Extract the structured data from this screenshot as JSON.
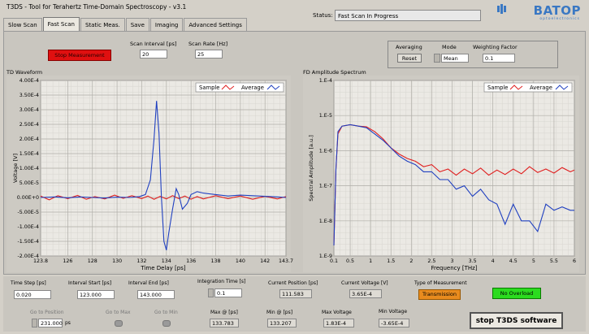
{
  "app": {
    "title": "T3DS  -  Tool for Terahertz Time-Domain Spectroscopy  -  v3.1"
  },
  "logo": {
    "name": "BATOP",
    "sub": "optoelectronics"
  },
  "status": {
    "label": "Status:",
    "value": "Fast Scan In Progress"
  },
  "tabs": [
    {
      "label": "Slow Scan"
    },
    {
      "label": "Fast Scan"
    },
    {
      "label": "Static Meas."
    },
    {
      "label": "Save"
    },
    {
      "label": "Imaging"
    },
    {
      "label": "Advanced Settings"
    }
  ],
  "controls": {
    "stop_measurement": "Stop Measurement",
    "scan_interval_label": "Scan Interval [ps]",
    "scan_interval_value": "20",
    "scan_rate_label": "Scan Rate [Hz]",
    "scan_rate_value": "25",
    "averaging_label": "Averaging",
    "reset": "Reset",
    "mode_label": "Mode",
    "mode_value": "Mean",
    "weighting_label": "Weighting Factor",
    "weighting_value": "0.1"
  },
  "chart_data": [
    {
      "type": "line",
      "title": "TD Waveform",
      "xlabel": "Time Delay [ps]",
      "ylabel": "Voltage [V]",
      "xlim": [
        123.8,
        143.7
      ],
      "ylim": [
        -0.0002,
        0.0004
      ],
      "x_ticks": [
        "123.8",
        "126",
        "128",
        "130",
        "132",
        "134",
        "136",
        "138",
        "140",
        "142",
        "143.7"
      ],
      "y_ticks": [
        "4.00E-4",
        "3.50E-4",
        "3.00E-4",
        "2.50E-4",
        "2.00E-4",
        "1.50E-4",
        "1.00E-4",
        "5.00E-5",
        "0.00E+0",
        "-5.00E-5",
        "-1.00E-4",
        "-1.50E-4",
        "-2.00E-4"
      ],
      "grid": true,
      "legend": "top-right",
      "series": [
        {
          "name": "Sample",
          "color": "#e02020",
          "x": [
            123.8,
            124.5,
            125.2,
            126,
            126.8,
            127.5,
            128.2,
            129,
            129.8,
            130.5,
            131.2,
            132,
            132.5,
            133,
            133.5,
            134,
            134.5,
            135,
            135.5,
            136,
            136.5,
            137,
            138,
            139,
            140,
            141,
            142,
            143,
            143.7
          ],
          "y": [
            5e-06,
            -8e-06,
            6e-06,
            -4e-06,
            7e-06,
            -6e-06,
            3e-06,
            -5e-06,
            8e-06,
            -3e-06,
            6e-06,
            -4e-06,
            5e-06,
            -6e-06,
            4e-06,
            -5e-06,
            6e-06,
            -4e-06,
            5e-06,
            -6e-06,
            3e-06,
            -5e-06,
            6e-06,
            -4e-06,
            5e-06,
            -6e-06,
            4e-06,
            -5e-06,
            3e-06
          ]
        },
        {
          "name": "Average",
          "color": "#2040c0",
          "x": [
            123.8,
            125,
            126,
            127,
            128,
            129,
            130,
            131,
            131.8,
            132.3,
            132.7,
            133,
            133.2,
            133.4,
            133.6,
            133.8,
            134,
            134.2,
            134.5,
            134.8,
            135,
            135.3,
            135.7,
            136,
            136.5,
            137,
            138,
            139,
            140,
            141,
            142,
            143,
            143.7
          ],
          "y": [
            0.0,
            2e-06,
            -1e-06,
            2e-06,
            0.0,
            -2e-06,
            1e-06,
            0.0,
            3e-06,
            1e-05,
            6e-05,
            0.0002,
            0.00033,
            0.00022,
            0.0,
            -0.00015,
            -0.00018,
            -0.00012,
            -4e-05,
            3e-05,
            1e-05,
            -4e-05,
            -2e-05,
            1e-05,
            2e-05,
            1.5e-05,
            1e-05,
            5e-06,
            8e-06,
            6e-06,
            4e-06,
            2e-06,
            0.0
          ]
        }
      ]
    },
    {
      "type": "line",
      "title": "FD Amplitude Spectrum",
      "xlabel": "Frequency [THz]",
      "ylabel": "Spectral Amplitude [a.u.]",
      "xlim": [
        0.1,
        6
      ],
      "ylim": [
        1e-09,
        0.0001
      ],
      "yscale": "log",
      "x_ticks": [
        "0.1",
        "0.5",
        "1",
        "1.5",
        "2",
        "2.5",
        "3",
        "3.5",
        "4",
        "4.5",
        "5",
        "5.5",
        "6"
      ],
      "y_ticks": [
        "1.E-4",
        "1.E-5",
        "1.E-6",
        "1.E-7",
        "1.E-8",
        "1.E-9"
      ],
      "grid": true,
      "legend": "top-right",
      "series": [
        {
          "name": "Sample",
          "color": "#e02020",
          "x": [
            0.1,
            0.15,
            0.2,
            0.3,
            0.5,
            0.7,
            0.9,
            1.1,
            1.3,
            1.5,
            1.7,
            1.9,
            2.1,
            2.3,
            2.5,
            2.7,
            2.9,
            3.1,
            3.3,
            3.5,
            3.7,
            3.9,
            4.1,
            4.3,
            4.5,
            4.7,
            4.9,
            5.1,
            5.3,
            5.5,
            5.7,
            5.9,
            6
          ],
          "y": [
            2e-09,
            3e-07,
            3e-06,
            5e-06,
            5.5e-06,
            5e-06,
            4.8e-06,
            3.5e-06,
            2.2e-06,
            1.2e-06,
            8e-07,
            6e-07,
            5e-07,
            3.5e-07,
            4e-07,
            2.5e-07,
            3e-07,
            2e-07,
            3e-07,
            2.2e-07,
            3.2e-07,
            2e-07,
            2.8e-07,
            2.1e-07,
            3e-07,
            2.2e-07,
            3.5e-07,
            2.4e-07,
            3e-07,
            2.3e-07,
            3.3e-07,
            2.5e-07,
            2.8e-07
          ]
        },
        {
          "name": "Average",
          "color": "#2040c0",
          "x": [
            0.1,
            0.15,
            0.2,
            0.3,
            0.5,
            0.7,
            0.9,
            1.1,
            1.3,
            1.5,
            1.7,
            1.9,
            2.1,
            2.3,
            2.5,
            2.7,
            2.9,
            3.1,
            3.3,
            3.5,
            3.7,
            3.9,
            4.1,
            4.3,
            4.5,
            4.7,
            4.9,
            5.1,
            5.3,
            5.5,
            5.7,
            5.9,
            6
          ],
          "y": [
            2e-09,
            3e-07,
            3.5e-06,
            5e-06,
            5.5e-06,
            5e-06,
            4.5e-06,
            3e-06,
            2e-06,
            1.2e-06,
            7e-07,
            5e-07,
            4e-07,
            2.5e-07,
            2.5e-07,
            1.5e-07,
            1.5e-07,
            8e-08,
            1e-07,
            5e-08,
            8e-08,
            4e-08,
            3e-08,
            8e-09,
            3e-08,
            1e-08,
            1e-08,
            5e-09,
            3e-08,
            2e-08,
            2.5e-08,
            2e-08,
            2e-08
          ]
        }
      ]
    }
  ],
  "bottom": {
    "time_step_label": "Time Step [ps]",
    "time_step_value": "0.020",
    "interval_start_label": "Interval Start [ps]",
    "interval_start_value": "123.000",
    "interval_end_label": "Interval End [ps]",
    "interval_end_value": "143.000",
    "integration_time_label": "Integration Time [s]",
    "integration_time_value": "0.1",
    "current_position_label": "Current Position [ps]",
    "current_position_value": "111.583",
    "current_voltage_label": "Current Voltage [V]",
    "current_voltage_value": "3.65E-4",
    "type_label": "Type of Measurement",
    "type_value": "Transmission",
    "overload_value": "No Overload",
    "goto_label": "Go to Position",
    "goto_value": "231.000",
    "goto_unit": "ps",
    "goto_max_label": "Go to Max",
    "goto_min_label": "Go to Min",
    "max_at_label": "Max @ [ps]",
    "max_at_value": "133.783",
    "min_at_label": "Min @ [ps]",
    "min_at_value": "133.207",
    "max_voltage_label": "Max Voltage",
    "max_voltage_value": "1.83E-4",
    "min_voltage_label": "Min Voltage",
    "min_voltage_value": "-3.65E-4",
    "stop_t3ds": "stop T3DS software"
  }
}
